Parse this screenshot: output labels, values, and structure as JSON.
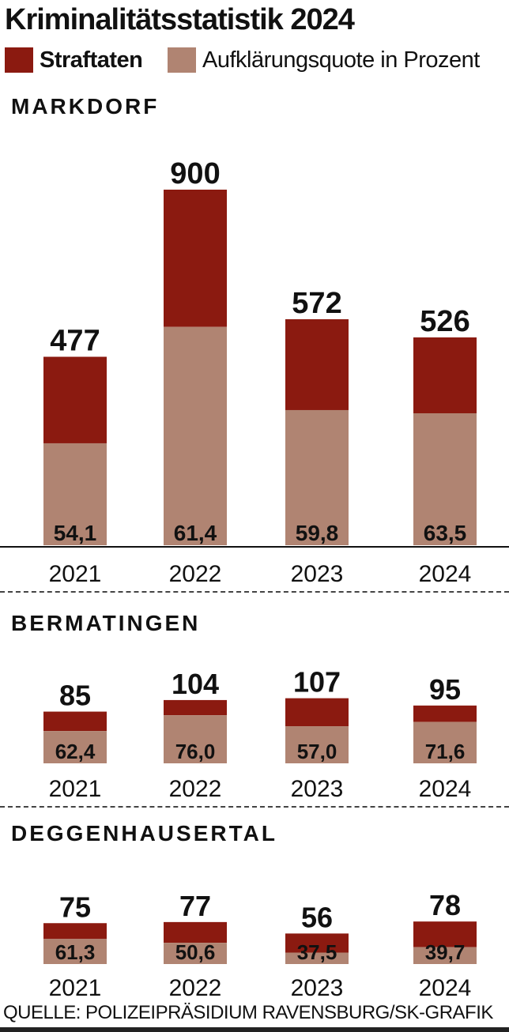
{
  "header": {
    "title": "Kriminalitätsstatistik 2024",
    "legend": [
      {
        "label": "Straftaten",
        "color": "#8b1a10"
      },
      {
        "label": "Aufklärungsquote in Prozent",
        "color": "#b08472"
      }
    ]
  },
  "source": "QUELLE: POLIZEIPRÄSIDIUM RAVENSBURG/SK-GRAFIK",
  "chart_data": [
    {
      "type": "bar",
      "title": "MARKDORF",
      "categories": [
        "2021",
        "2022",
        "2023",
        "2024"
      ],
      "series": [
        {
          "name": "Straftaten",
          "values": [
            477,
            900,
            572,
            526
          ],
          "labels": [
            "477",
            "900",
            "572",
            "526"
          ]
        },
        {
          "name": "Aufklärungsquote in Prozent",
          "values": [
            54.1,
            61.4,
            59.8,
            63.5
          ],
          "labels": [
            "54,1",
            "61,4",
            "59,8",
            "63,5"
          ]
        }
      ]
    },
    {
      "type": "bar",
      "title": "BERMATINGEN",
      "categories": [
        "2021",
        "2022",
        "2023",
        "2024"
      ],
      "series": [
        {
          "name": "Straftaten",
          "values": [
            85,
            104,
            107,
            95
          ],
          "labels": [
            "85",
            "104",
            "107",
            "95"
          ]
        },
        {
          "name": "Aufklärungsquote in Prozent",
          "values": [
            62.4,
            76.0,
            57.0,
            71.6
          ],
          "labels": [
            "62,4",
            "76,0",
            "57,0",
            "71,6"
          ]
        }
      ]
    },
    {
      "type": "bar",
      "title": "DEGGENHAUSERTAL",
      "categories": [
        "2021",
        "2022",
        "2023",
        "2024"
      ],
      "series": [
        {
          "name": "Straftaten",
          "values": [
            75,
            77,
            56,
            78
          ],
          "labels": [
            "75",
            "77",
            "56",
            "78"
          ]
        },
        {
          "name": "Aufklärungsquote in Prozent",
          "values": [
            61.3,
            50.6,
            37.5,
            39.7
          ],
          "labels": [
            "61,3",
            "50,6",
            "37,5",
            "39,7"
          ]
        }
      ]
    }
  ]
}
